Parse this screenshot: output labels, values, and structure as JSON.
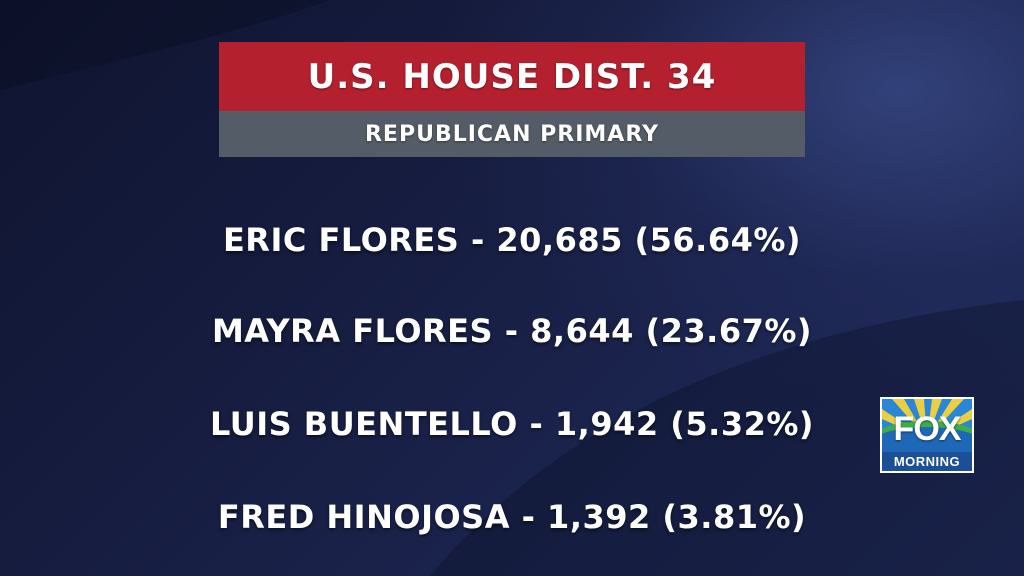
{
  "graphic": {
    "title": "U.S. HOUSE DIST. 34",
    "subtitle": "REPUBLICAN PRIMARY",
    "title_color": "#b5202f",
    "subtitle_color": "#545c67"
  },
  "results": [
    {
      "text": "ERIC FLORES - 20,685 (56.64%)"
    },
    {
      "text": "MAYRA FLORES - 8,644 (23.67%)"
    },
    {
      "text": "LUIS BUENTELLO - 1,942 (5.32%)"
    },
    {
      "text": "FRED HINOJOSA - 1,392 (3.81%)"
    }
  ],
  "logo": {
    "icon": "fox-morning-logo",
    "line1": "FOX",
    "line2": "MORNING"
  }
}
